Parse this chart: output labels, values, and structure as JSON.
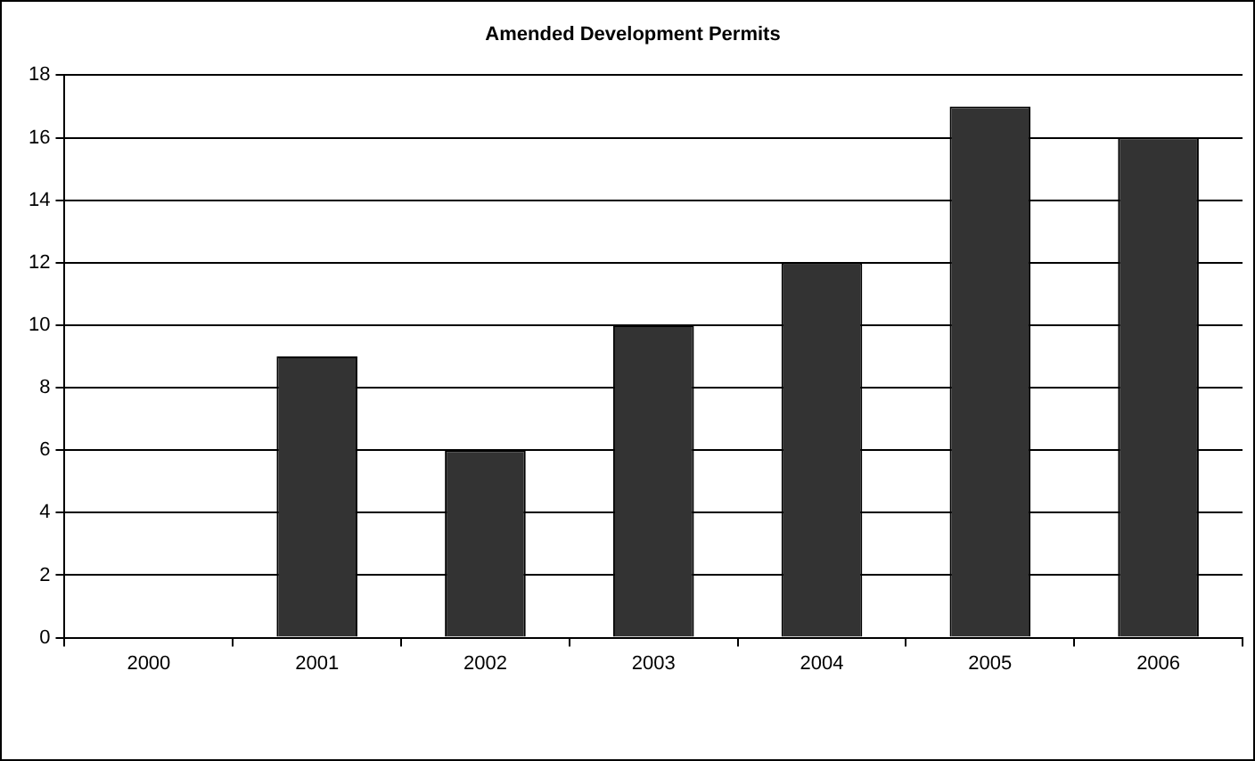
{
  "chart_data": {
    "type": "bar",
    "title": "Amended Development Permits",
    "categories": [
      "2000",
      "2001",
      "2002",
      "2003",
      "2004",
      "2005",
      "2006"
    ],
    "values": [
      0,
      9,
      6,
      10,
      12,
      17,
      16
    ],
    "color": "#333333",
    "ylim": [
      0,
      18
    ],
    "yticks": [
      0,
      2,
      4,
      6,
      8,
      10,
      12,
      14,
      16,
      18
    ],
    "grid": "y",
    "legend": false
  }
}
